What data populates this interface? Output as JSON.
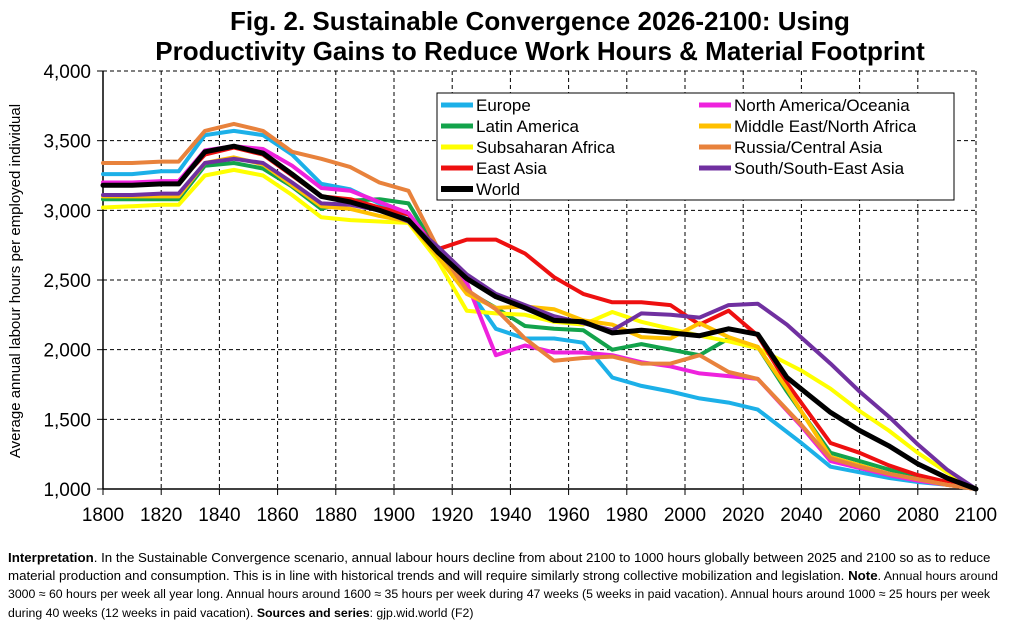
{
  "chart_data": {
    "type": "line",
    "title_lines": [
      "Fig. 2. Sustainable Convergence 2026-2100: Using",
      "Productivity Gains to Reduce Work Hours & Material Footprint"
    ],
    "xlabel": "",
    "ylabel": "Average annual labour hours per employed individual",
    "xlim": [
      1800,
      2100
    ],
    "ylim": [
      1000,
      4000
    ],
    "x_ticks": [
      1800,
      1820,
      1840,
      1860,
      1880,
      1900,
      1920,
      1940,
      1960,
      1980,
      2000,
      2020,
      2040,
      2060,
      2080,
      2100
    ],
    "y_ticks": [
      1000,
      1500,
      2000,
      2500,
      3000,
      3500,
      4000
    ],
    "y_tick_labels": [
      "1,000",
      "1,500",
      "2,000",
      "2,500",
      "3,000",
      "3,500",
      "4,000"
    ],
    "grid": true,
    "legend_position": "top-right",
    "series": [
      {
        "name": "Europe",
        "color": "#1CB0E8",
        "width": 4,
        "points": [
          [
            1800,
            3260
          ],
          [
            1810,
            3260
          ],
          [
            1820,
            3280
          ],
          [
            1826,
            3280
          ],
          [
            1835,
            3540
          ],
          [
            1845,
            3570
          ],
          [
            1855,
            3540
          ],
          [
            1865,
            3400
          ],
          [
            1875,
            3190
          ],
          [
            1885,
            3150
          ],
          [
            1895,
            3050
          ],
          [
            1905,
            2930
          ],
          [
            1915,
            2720
          ],
          [
            1925,
            2450
          ],
          [
            1935,
            2150
          ],
          [
            1945,
            2080
          ],
          [
            1955,
            2080
          ],
          [
            1965,
            2050
          ],
          [
            1975,
            1800
          ],
          [
            1985,
            1740
          ],
          [
            1995,
            1700
          ],
          [
            2005,
            1650
          ],
          [
            2015,
            1620
          ],
          [
            2025,
            1570
          ],
          [
            2040,
            1330
          ],
          [
            2050,
            1160
          ],
          [
            2060,
            1120
          ],
          [
            2070,
            1080
          ],
          [
            2080,
            1050
          ],
          [
            2090,
            1030
          ],
          [
            2100,
            1000
          ]
        ]
      },
      {
        "name": "Latin America",
        "color": "#13A34B",
        "width": 4,
        "points": [
          [
            1800,
            3080
          ],
          [
            1810,
            3080
          ],
          [
            1820,
            3080
          ],
          [
            1826,
            3080
          ],
          [
            1835,
            3320
          ],
          [
            1845,
            3340
          ],
          [
            1855,
            3300
          ],
          [
            1865,
            3170
          ],
          [
            1875,
            3010
          ],
          [
            1885,
            3070
          ],
          [
            1895,
            3080
          ],
          [
            1905,
            3050
          ],
          [
            1915,
            2700
          ],
          [
            1925,
            2420
          ],
          [
            1935,
            2300
          ],
          [
            1945,
            2170
          ],
          [
            1955,
            2150
          ],
          [
            1965,
            2140
          ],
          [
            1975,
            2000
          ],
          [
            1985,
            2040
          ],
          [
            1995,
            2000
          ],
          [
            2005,
            1960
          ],
          [
            2015,
            2080
          ],
          [
            2025,
            2020
          ],
          [
            2035,
            1700
          ],
          [
            2050,
            1260
          ],
          [
            2060,
            1200
          ],
          [
            2070,
            1140
          ],
          [
            2080,
            1080
          ],
          [
            2090,
            1040
          ],
          [
            2100,
            1000
          ]
        ]
      },
      {
        "name": "Subsaharan Africa",
        "color": "#FFFF00",
        "width": 4,
        "points": [
          [
            1800,
            3020
          ],
          [
            1810,
            3030
          ],
          [
            1820,
            3040
          ],
          [
            1826,
            3040
          ],
          [
            1835,
            3250
          ],
          [
            1845,
            3290
          ],
          [
            1855,
            3250
          ],
          [
            1865,
            3110
          ],
          [
            1875,
            2950
          ],
          [
            1885,
            2930
          ],
          [
            1895,
            2920
          ],
          [
            1905,
            2910
          ],
          [
            1915,
            2640
          ],
          [
            1925,
            2280
          ],
          [
            1935,
            2260
          ],
          [
            1945,
            2250
          ],
          [
            1955,
            2200
          ],
          [
            1965,
            2180
          ],
          [
            1975,
            2270
          ],
          [
            1985,
            2200
          ],
          [
            1995,
            2150
          ],
          [
            2005,
            2100
          ],
          [
            2015,
            2060
          ],
          [
            2025,
            2010
          ],
          [
            2040,
            1850
          ],
          [
            2050,
            1720
          ],
          [
            2060,
            1560
          ],
          [
            2070,
            1420
          ],
          [
            2080,
            1260
          ],
          [
            2090,
            1120
          ],
          [
            2100,
            1000
          ]
        ]
      },
      {
        "name": "East Asia",
        "color": "#EE1010",
        "width": 4,
        "points": [
          [
            1800,
            3200
          ],
          [
            1810,
            3200
          ],
          [
            1820,
            3200
          ],
          [
            1826,
            3200
          ],
          [
            1835,
            3400
          ],
          [
            1845,
            3450
          ],
          [
            1855,
            3400
          ],
          [
            1865,
            3250
          ],
          [
            1875,
            3100
          ],
          [
            1885,
            3080
          ],
          [
            1895,
            3020
          ],
          [
            1905,
            2970
          ],
          [
            1915,
            2720
          ],
          [
            1925,
            2790
          ],
          [
            1935,
            2790
          ],
          [
            1945,
            2690
          ],
          [
            1955,
            2520
          ],
          [
            1965,
            2400
          ],
          [
            1975,
            2340
          ],
          [
            1985,
            2340
          ],
          [
            1995,
            2320
          ],
          [
            2005,
            2180
          ],
          [
            2015,
            2280
          ],
          [
            2025,
            2100
          ],
          [
            2035,
            1760
          ],
          [
            2050,
            1330
          ],
          [
            2060,
            1260
          ],
          [
            2070,
            1170
          ],
          [
            2080,
            1100
          ],
          [
            2090,
            1050
          ],
          [
            2100,
            1000
          ]
        ]
      },
      {
        "name": "North America/Oceania",
        "color": "#EE22DD",
        "width": 4,
        "points": [
          [
            1800,
            3200
          ],
          [
            1810,
            3200
          ],
          [
            1820,
            3210
          ],
          [
            1826,
            3210
          ],
          [
            1835,
            3430
          ],
          [
            1845,
            3460
          ],
          [
            1855,
            3440
          ],
          [
            1865,
            3320
          ],
          [
            1875,
            3160
          ],
          [
            1885,
            3140
          ],
          [
            1895,
            3060
          ],
          [
            1905,
            2980
          ],
          [
            1915,
            2700
          ],
          [
            1925,
            2480
          ],
          [
            1935,
            1960
          ],
          [
            1945,
            2030
          ],
          [
            1955,
            1980
          ],
          [
            1965,
            1980
          ],
          [
            1975,
            1960
          ],
          [
            1985,
            1910
          ],
          [
            1995,
            1880
          ],
          [
            2005,
            1830
          ],
          [
            2015,
            1810
          ],
          [
            2025,
            1790
          ],
          [
            2040,
            1450
          ],
          [
            2050,
            1200
          ],
          [
            2060,
            1150
          ],
          [
            2070,
            1100
          ],
          [
            2080,
            1060
          ],
          [
            2090,
            1030
          ],
          [
            2100,
            1000
          ]
        ]
      },
      {
        "name": "Middle East/North Africa",
        "color": "#FFC000",
        "width": 4,
        "points": [
          [
            1800,
            3100
          ],
          [
            1810,
            3100
          ],
          [
            1820,
            3100
          ],
          [
            1826,
            3100
          ],
          [
            1835,
            3340
          ],
          [
            1845,
            3380
          ],
          [
            1855,
            3330
          ],
          [
            1865,
            3180
          ],
          [
            1875,
            3030
          ],
          [
            1885,
            3010
          ],
          [
            1895,
            2960
          ],
          [
            1905,
            2920
          ],
          [
            1915,
            2670
          ],
          [
            1925,
            2400
          ],
          [
            1935,
            2300
          ],
          [
            1945,
            2310
          ],
          [
            1955,
            2290
          ],
          [
            1965,
            2210
          ],
          [
            1975,
            2180
          ],
          [
            1985,
            2090
          ],
          [
            1995,
            2080
          ],
          [
            2005,
            2190
          ],
          [
            2015,
            2090
          ],
          [
            2025,
            2020
          ],
          [
            2035,
            1720
          ],
          [
            2050,
            1230
          ],
          [
            2060,
            1170
          ],
          [
            2070,
            1110
          ],
          [
            2080,
            1070
          ],
          [
            2090,
            1030
          ],
          [
            2100,
            1000
          ]
        ]
      },
      {
        "name": "Russia/Central Asia",
        "color": "#E8823C",
        "width": 4,
        "points": [
          [
            1800,
            3340
          ],
          [
            1810,
            3340
          ],
          [
            1820,
            3350
          ],
          [
            1826,
            3350
          ],
          [
            1835,
            3570
          ],
          [
            1845,
            3620
          ],
          [
            1855,
            3570
          ],
          [
            1865,
            3420
          ],
          [
            1875,
            3370
          ],
          [
            1885,
            3310
          ],
          [
            1895,
            3200
          ],
          [
            1905,
            3140
          ],
          [
            1915,
            2730
          ],
          [
            1925,
            2430
          ],
          [
            1935,
            2290
          ],
          [
            1945,
            2080
          ],
          [
            1955,
            1920
          ],
          [
            1965,
            1940
          ],
          [
            1975,
            1950
          ],
          [
            1985,
            1900
          ],
          [
            1995,
            1900
          ],
          [
            2005,
            1960
          ],
          [
            2015,
            1840
          ],
          [
            2025,
            1790
          ],
          [
            2040,
            1460
          ],
          [
            2050,
            1220
          ],
          [
            2060,
            1160
          ],
          [
            2070,
            1110
          ],
          [
            2080,
            1070
          ],
          [
            2090,
            1030
          ],
          [
            2100,
            1000
          ]
        ]
      },
      {
        "name": "South/South-East Asia",
        "color": "#7030A0",
        "width": 4,
        "points": [
          [
            1800,
            3110
          ],
          [
            1810,
            3110
          ],
          [
            1820,
            3120
          ],
          [
            1826,
            3120
          ],
          [
            1835,
            3340
          ],
          [
            1845,
            3370
          ],
          [
            1855,
            3340
          ],
          [
            1865,
            3200
          ],
          [
            1875,
            3050
          ],
          [
            1885,
            3040
          ],
          [
            1895,
            3000
          ],
          [
            1905,
            2920
          ],
          [
            1915,
            2740
          ],
          [
            1925,
            2540
          ],
          [
            1935,
            2400
          ],
          [
            1945,
            2320
          ],
          [
            1955,
            2240
          ],
          [
            1965,
            2190
          ],
          [
            1975,
            2140
          ],
          [
            1985,
            2260
          ],
          [
            1995,
            2250
          ],
          [
            2005,
            2230
          ],
          [
            2015,
            2320
          ],
          [
            2025,
            2330
          ],
          [
            2035,
            2180
          ],
          [
            2050,
            1900
          ],
          [
            2060,
            1700
          ],
          [
            2070,
            1520
          ],
          [
            2080,
            1320
          ],
          [
            2090,
            1140
          ],
          [
            2100,
            1000
          ]
        ]
      },
      {
        "name": "World",
        "color": "#000000",
        "width": 5,
        "points": [
          [
            1800,
            3180
          ],
          [
            1810,
            3180
          ],
          [
            1820,
            3190
          ],
          [
            1826,
            3190
          ],
          [
            1835,
            3420
          ],
          [
            1845,
            3460
          ],
          [
            1855,
            3410
          ],
          [
            1865,
            3260
          ],
          [
            1875,
            3100
          ],
          [
            1885,
            3060
          ],
          [
            1895,
            3000
          ],
          [
            1905,
            2930
          ],
          [
            1915,
            2700
          ],
          [
            1925,
            2510
          ],
          [
            1935,
            2380
          ],
          [
            1945,
            2300
          ],
          [
            1955,
            2210
          ],
          [
            1965,
            2200
          ],
          [
            1975,
            2120
          ],
          [
            1985,
            2140
          ],
          [
            1995,
            2120
          ],
          [
            2005,
            2100
          ],
          [
            2015,
            2150
          ],
          [
            2025,
            2110
          ],
          [
            2035,
            1800
          ],
          [
            2050,
            1550
          ],
          [
            2060,
            1420
          ],
          [
            2070,
            1310
          ],
          [
            2080,
            1180
          ],
          [
            2090,
            1080
          ],
          [
            2100,
            1000
          ]
        ]
      }
    ]
  },
  "legend_layout": {
    "columns": [
      [
        "Europe",
        "Latin America",
        "Subsaharan Africa",
        "East Asia",
        "World"
      ],
      [
        "North America/Oceania",
        "Middle East/North Africa",
        "Russia/Central Asia",
        "South/South-East Asia"
      ]
    ]
  },
  "footer": {
    "interpretation_label": "Interpretation",
    "interpretation_text": ". In the Sustainable Convergence scenario, annual labour hours decline from about 2100 to 1000 hours globally between 2025 and 2100 so as to reduce material production and consumption. This is in line with historical trends and will require similarly strong collective mobilization and legislation. ",
    "note_label": "Note",
    "note_text": ". Annual hours around 3000 ≈ 60 hours per week all year long. Annual hours around 1600 ≈ 35 hours per week during 47 weeks (5 weeks in paid vacation). Annual hours around 1000 ≈ 25 hours per week during 40 weeks (12 weeks in paid vacation). ",
    "sources_label": "Sources and series",
    "sources_text": ": gjp.wid.world (F2)"
  }
}
